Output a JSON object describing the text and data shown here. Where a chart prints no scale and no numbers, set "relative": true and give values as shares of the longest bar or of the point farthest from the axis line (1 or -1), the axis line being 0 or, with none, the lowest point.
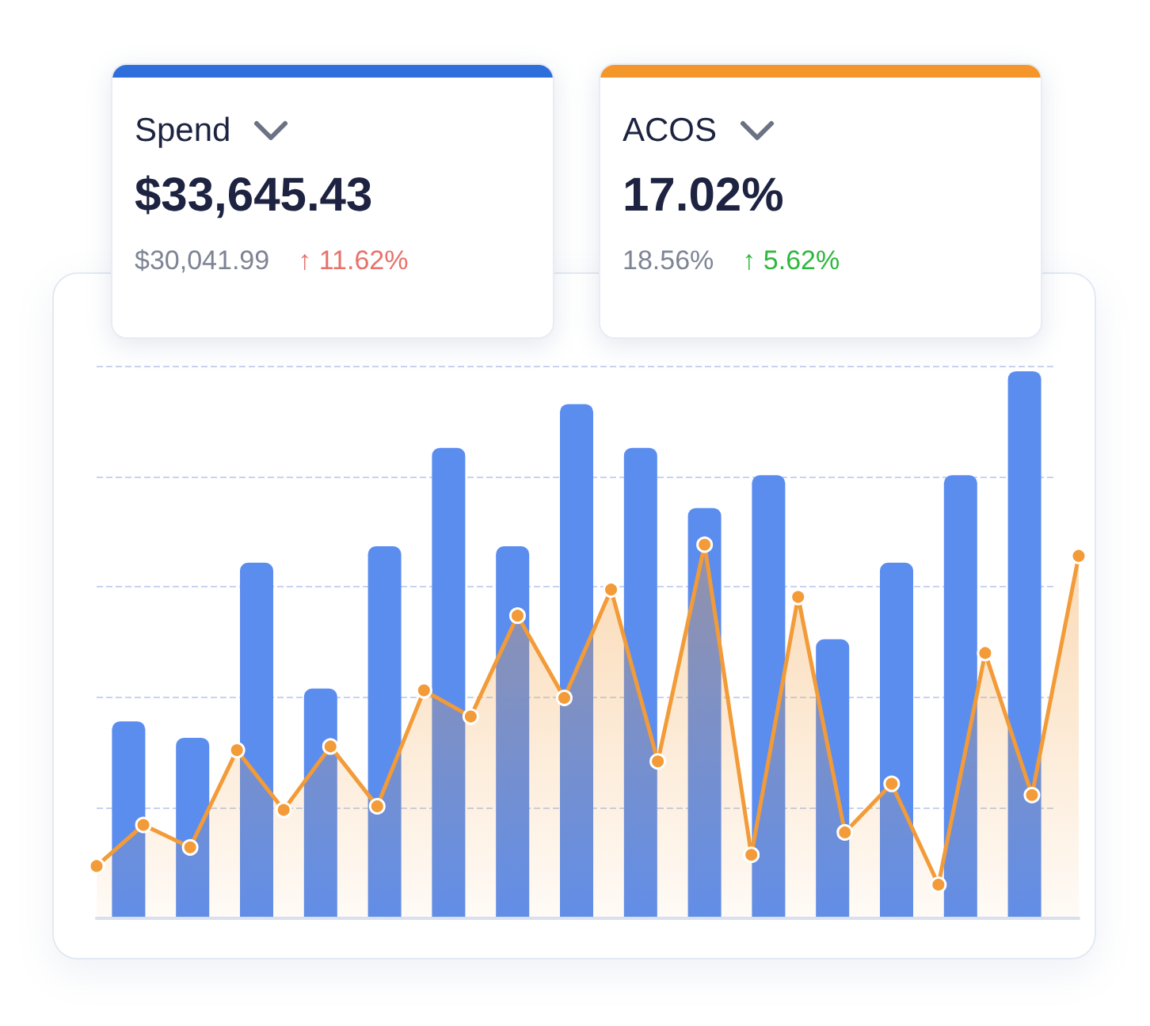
{
  "chart_data": [
    {
      "type": "other",
      "title": "Spend",
      "annotations": [
        "$33,645.43",
        "$30,041.99",
        "↑ 11.62%"
      ]
    },
    {
      "type": "other",
      "title": "ACOS",
      "annotations": [
        "17.02%",
        "18.56%",
        "↑ 5.62%"
      ]
    },
    {
      "type": "bar",
      "relative": true,
      "grid": "y",
      "categories": [
        null,
        null,
        null,
        null,
        null,
        null,
        null,
        null,
        null,
        null,
        null,
        null,
        null,
        null,
        null
      ],
      "series": [
        {
          "color": "#5b8def",
          "values": [
            0.36,
            0.33,
            0.65,
            0.42,
            0.68,
            0.86,
            0.68,
            0.94,
            0.86,
            0.75,
            0.81,
            0.51,
            0.65,
            0.81,
            1
          ]
        }
      ]
    },
    {
      "type": "area",
      "relative": true,
      "marker": "circle",
      "categories": [
        null,
        null,
        null,
        null,
        null,
        null,
        null,
        null,
        null,
        null,
        null,
        null,
        null,
        null,
        null,
        null,
        null,
        null,
        null,
        null,
        null,
        null
      ],
      "series": [
        {
          "color": "#f29b38",
          "values": [
            0.14,
            0.25,
            0.19,
            0.45,
            0.29,
            0.46,
            0.3,
            0.61,
            0.54,
            0.81,
            0.59,
            0.88,
            0.42,
            1,
            0.17,
            0.86,
            0.23,
            0.36,
            0.09,
            0.71,
            0.33,
            0.97
          ]
        }
      ]
    }
  ]
}
